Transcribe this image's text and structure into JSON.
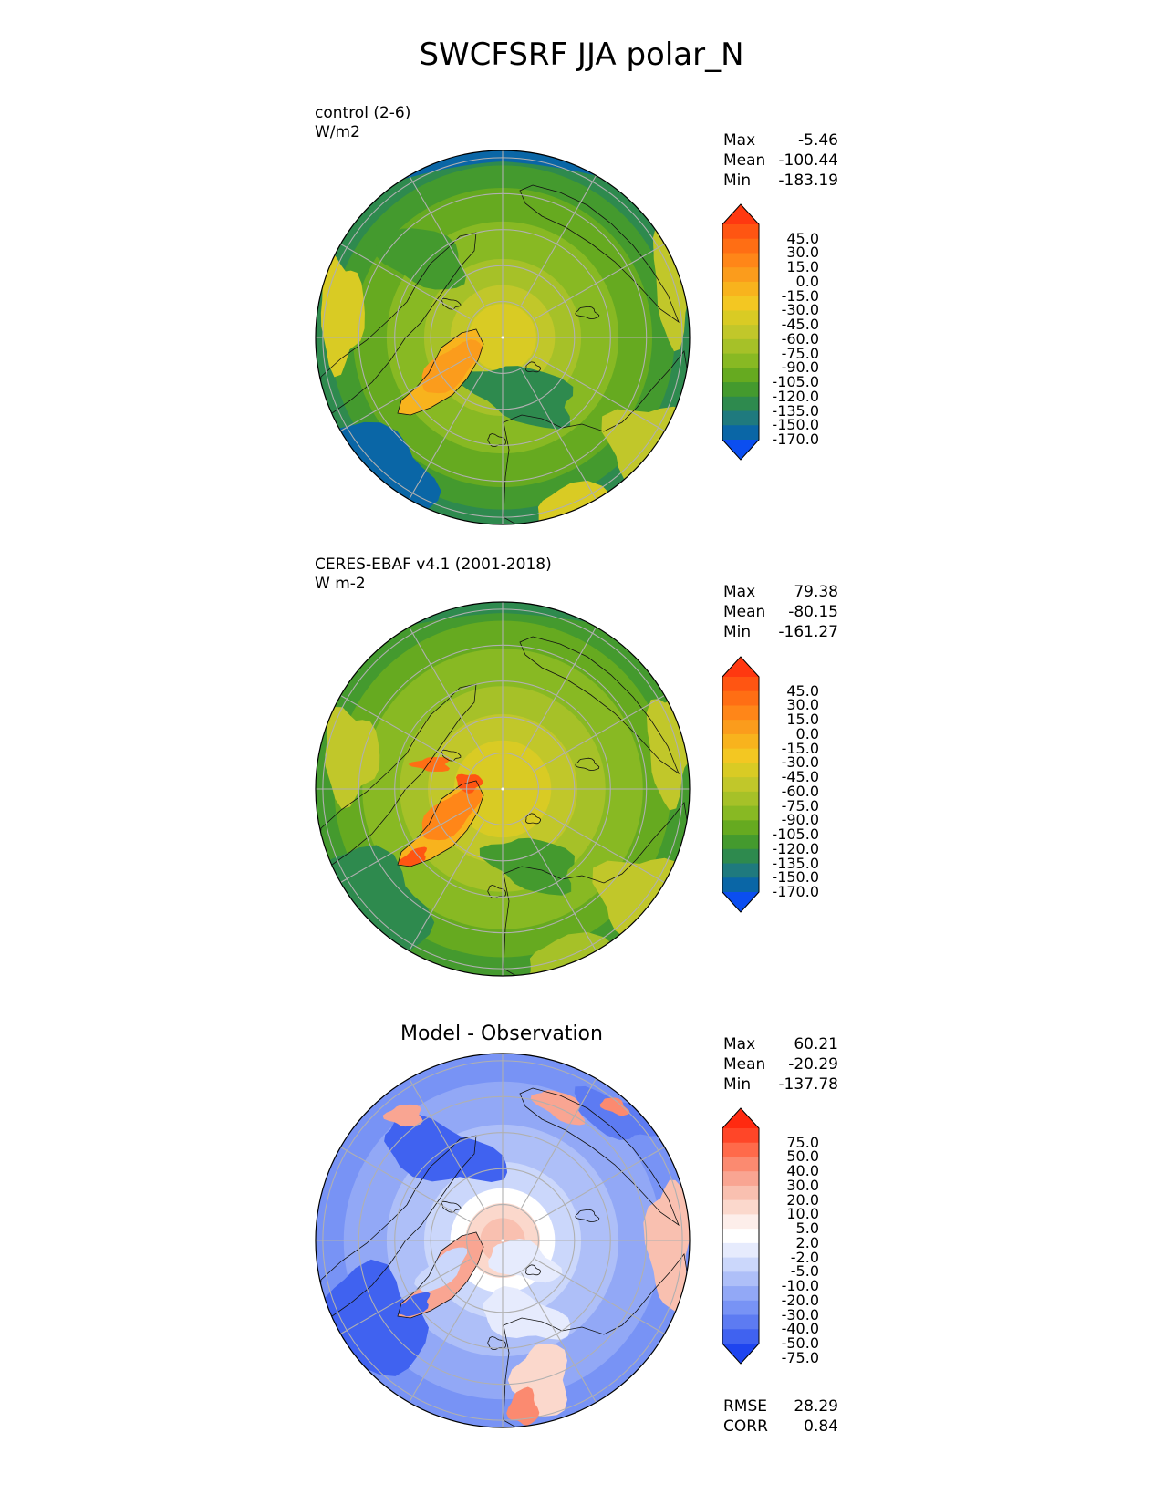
{
  "title": "SWCFSRF JJA polar_N",
  "panels": [
    {
      "id": "test",
      "label": "control (2-6)",
      "units": "W/m2",
      "stats": [
        {
          "name": "Max",
          "value": "-5.46"
        },
        {
          "name": "Mean",
          "value": "-100.44"
        },
        {
          "name": "Min",
          "value": "-183.19"
        }
      ],
      "colorbar": {
        "levels": [
          "45.0",
          "30.0",
          "15.0",
          "0.0",
          "-15.0",
          "-30.0",
          "-45.0",
          "-60.0",
          "-75.0",
          "-90.0",
          "-105.0",
          "-120.0",
          "-135.0",
          "-150.0",
          "-170.0"
        ],
        "colors": [
          "#ff3810",
          "#ff5512",
          "#ff6e14",
          "#ff8618",
          "#fb9c1c",
          "#f8b31d",
          "#f3c722",
          "#d9cb24",
          "#c1c72a",
          "#a6c128",
          "#88b923",
          "#66aa20",
          "#449a2e",
          "#2e8a4e",
          "#1f7a7e",
          "#0a66a6",
          "#0b4ef0"
        ]
      }
    },
    {
      "id": "reference",
      "label": "CERES-EBAF v4.1 (2001-2018)",
      "units": "W m-2",
      "stats": [
        {
          "name": "Max",
          "value": "79.38"
        },
        {
          "name": "Mean",
          "value": "-80.15"
        },
        {
          "name": "Min",
          "value": "-161.27"
        }
      ],
      "colorbar": {
        "levels": [
          "45.0",
          "30.0",
          "15.0",
          "0.0",
          "-15.0",
          "-30.0",
          "-45.0",
          "-60.0",
          "-75.0",
          "-90.0",
          "-105.0",
          "-120.0",
          "-135.0",
          "-150.0",
          "-170.0"
        ],
        "colors": [
          "#ff3810",
          "#ff5512",
          "#ff6e14",
          "#ff8618",
          "#fb9c1c",
          "#f8b31d",
          "#f3c722",
          "#d9cb24",
          "#c1c72a",
          "#a6c128",
          "#88b923",
          "#66aa20",
          "#449a2e",
          "#2e8a4e",
          "#1f7a7e",
          "#0a66a6",
          "#0b4ef0"
        ]
      }
    },
    {
      "id": "diff",
      "center_title": "Model - Observation",
      "stats": [
        {
          "name": "Max",
          "value": "60.21"
        },
        {
          "name": "Mean",
          "value": "-20.29"
        },
        {
          "name": "Min",
          "value": "-137.78"
        }
      ],
      "metrics": [
        {
          "name": "RMSE",
          "value": "28.29"
        },
        {
          "name": "CORR",
          "value": "0.84"
        }
      ],
      "colorbar": {
        "levels": [
          "75.0",
          "50.0",
          "40.0",
          "30.0",
          "20.0",
          "10.0",
          "5.0",
          "2.0",
          "-2.0",
          "-5.0",
          "-10.0",
          "-20.0",
          "-30.0",
          "-40.0",
          "-50.0",
          "-75.0"
        ],
        "colors": [
          "#ff2a10",
          "#ff4628",
          "#ff6a4a",
          "#fb8a70",
          "#f9a592",
          "#f9c0b0",
          "#fbd8cc",
          "#fdeeea",
          "#ffffff",
          "#e6ebfd",
          "#cbd7fb",
          "#aebff8",
          "#92a8f6",
          "#7893f5",
          "#5d7bf2",
          "#4062f0",
          "#1e44ef"
        ]
      }
    }
  ]
}
